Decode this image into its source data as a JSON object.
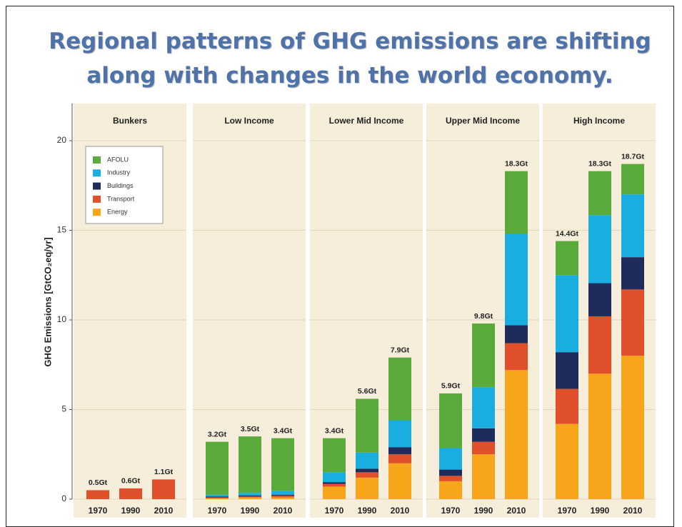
{
  "chart_data": {
    "type": "bar",
    "stacked": true,
    "title": "Regional patterns of GHG emissions are shifting along with changes in the world economy.",
    "ylabel": "GHG Emissions [GtCO₂eq/yr]",
    "ylim": [
      0,
      22
    ],
    "yticks": [
      0,
      5,
      10,
      15,
      20
    ],
    "grid": true,
    "legend": "upper left",
    "categories": [
      "1970",
      "1990",
      "2010"
    ],
    "series": [
      {
        "name": "Energy",
        "color": "#f7a61b"
      },
      {
        "name": "Transport",
        "color": "#e0502a"
      },
      {
        "name": "Buildings",
        "color": "#1f2b5a"
      },
      {
        "name": "Industry",
        "color": "#1aaee0"
      },
      {
        "name": "AFOLU",
        "color": "#5aab3c"
      }
    ],
    "panels": [
      {
        "name": "Bunkers",
        "values": [
          [
            0,
            0,
            0
          ],
          [
            0.5,
            0.6,
            1.1
          ],
          [
            0,
            0,
            0
          ],
          [
            0,
            0,
            0
          ],
          [
            0,
            0,
            0
          ]
        ],
        "totals": [
          0.5,
          0.6,
          1.1
        ],
        "total_labels": [
          "0.5Gt",
          "0.6Gt",
          "1.1Gt"
        ]
      },
      {
        "name": "Low Income",
        "values": [
          [
            0.05,
            0.1,
            0.1
          ],
          [
            0.05,
            0.05,
            0.1
          ],
          [
            0.05,
            0.05,
            0.05
          ],
          [
            0.1,
            0.15,
            0.2
          ],
          [
            2.95,
            3.15,
            2.95
          ]
        ],
        "totals": [
          3.2,
          3.5,
          3.4
        ],
        "total_labels": [
          "3.2Gt",
          "3.5Gt",
          "3.4Gt"
        ]
      },
      {
        "name": "Lower Mid Income",
        "values": [
          [
            0.7,
            1.2,
            2.0
          ],
          [
            0.15,
            0.3,
            0.5
          ],
          [
            0.1,
            0.2,
            0.4
          ],
          [
            0.55,
            0.9,
            1.5
          ],
          [
            1.9,
            3.0,
            3.5
          ]
        ],
        "totals": [
          3.4,
          5.6,
          7.9
        ],
        "total_labels": [
          "3.4Gt",
          "5.6Gt",
          "7.9Gt"
        ]
      },
      {
        "name": "Upper Mid Income",
        "values": [
          [
            1.0,
            2.5,
            7.2
          ],
          [
            0.3,
            0.7,
            1.5
          ],
          [
            0.35,
            0.75,
            1.0
          ],
          [
            1.2,
            2.3,
            5.1
          ],
          [
            3.05,
            3.55,
            3.5
          ]
        ],
        "totals": [
          5.9,
          9.8,
          18.3
        ],
        "total_labels": [
          "5.9Gt",
          "9.8Gt",
          "18.3Gt"
        ]
      },
      {
        "name": "High Income",
        "values": [
          [
            4.2,
            7.0,
            8.0
          ],
          [
            1.95,
            3.2,
            3.7
          ],
          [
            2.05,
            1.85,
            1.8
          ],
          [
            4.3,
            3.8,
            3.5
          ],
          [
            1.9,
            2.45,
            1.7
          ]
        ],
        "totals": [
          14.4,
          18.3,
          18.7
        ],
        "total_labels": [
          "14.4Gt",
          "18.3Gt",
          "18.7Gt"
        ]
      }
    ]
  }
}
